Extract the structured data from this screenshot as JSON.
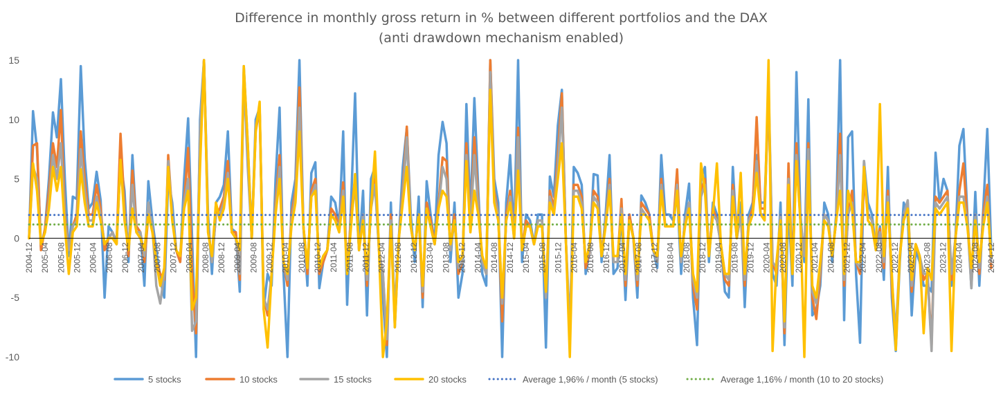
{
  "chart_data": {
    "type": "line",
    "title": "Difference in monthly gross return in % between different portfolios and the DAX",
    "subtitle": "(anti drawdown mechanism enabled)",
    "xlabel": "",
    "ylabel": "",
    "ylim": [
      -10,
      15
    ],
    "yticks": [
      15,
      10,
      5,
      0,
      -5,
      -10
    ],
    "grid": false,
    "legend": "bottom",
    "x_start": "2004-12",
    "x_end": "2024-12",
    "x_ticks": [
      "2004-12",
      "2005-04",
      "2005-08",
      "2005-12",
      "2006-04",
      "2006-08",
      "2006-12",
      "2007-04",
      "2007-08",
      "2007-12",
      "2008-04",
      "2008-08",
      "2008-12",
      "2009-04",
      "2009-08",
      "2009-12",
      "2010-04",
      "2010-08",
      "2010-12",
      "2011-04",
      "2011-08",
      "2011-12",
      "2012-04",
      "2012-08",
      "2012-12",
      "2013-04",
      "2013-08",
      "2013-12",
      "2014-04",
      "2014-08",
      "2014-12",
      "2015-04",
      "2015-08",
      "2015-12",
      "2016-04",
      "2016-08",
      "2016-12",
      "2017-04",
      "2017-08",
      "2017-12",
      "2018-04",
      "2018-08",
      "2018-12",
      "2019-04",
      "2019-08",
      "2019-12",
      "2020-04",
      "2020-08",
      "2020-12",
      "2021-04",
      "2021-08",
      "2021-12",
      "2022-04",
      "2022-08",
      "2022-12",
      "2023-04",
      "2023-08",
      "2023-12",
      "2024-04",
      "2024-08",
      "2024-12"
    ],
    "series": [
      {
        "name": "5 stocks",
        "color": "#5B9BD5",
        "style": "solid",
        "values": [
          0.0,
          10.7,
          7.5,
          -0.8,
          0.8,
          5.0,
          10.6,
          8.5,
          13.4,
          5.0,
          -1.5,
          3.5,
          3.3,
          14.5,
          6.7,
          2.5,
          3.0,
          5.6,
          3.2,
          -5.0,
          1.0,
          0.5,
          -0.3,
          6.5,
          4.0,
          -2.0,
          7.0,
          1.0,
          0.5,
          -4.0,
          4.8,
          1.5,
          -1.0,
          -3.5,
          -5.0,
          5.0,
          3.0,
          -1.0,
          -2.0,
          5.0,
          10.1,
          0.0,
          -10.0,
          10.0,
          15.0,
          2.0,
          -3.0,
          3.0,
          3.5,
          4.5,
          9.0,
          0.8,
          0.5,
          -4.5,
          14.5,
          8.0,
          0.0,
          10.0,
          11.0,
          -6.0,
          -3.0,
          -4.0,
          5.0,
          11.0,
          -3.0,
          -10.0,
          3.0,
          5.0,
          15.0,
          1.0,
          -4.0,
          5.5,
          6.4,
          -4.2,
          -2.0,
          -1.0,
          3.5,
          3.0,
          1.0,
          9.0,
          -5.6,
          3.0,
          12.2,
          -1.0,
          4.0,
          -6.5,
          5.0,
          6.0,
          -1.0,
          -5.0,
          -10.0,
          3.0,
          -7.5,
          0.0,
          6.0,
          9.3,
          2.0,
          -2.0,
          3.5,
          -5.8,
          4.8,
          2.0,
          -0.5,
          7.0,
          9.8,
          8.0,
          -2.0,
          3.0,
          -5.0,
          -3.0,
          11.3,
          2.0,
          11.8,
          4.0,
          -3.0,
          -4.0,
          15.0,
          5.0,
          3.0,
          -10.0,
          3.0,
          7.0,
          0.0,
          15.0,
          -2.0,
          2.0,
          1.5,
          -0.5,
          2.0,
          2.0,
          -9.2,
          5.2,
          3.5,
          9.5,
          12.5,
          0.0,
          -8.5,
          6.0,
          5.5,
          4.5,
          -3.0,
          -1.0,
          5.4,
          5.3,
          -2.0,
          2.0,
          7.0,
          -3.0,
          -2.5,
          2.0,
          -5.2,
          2.0,
          0.0,
          -5.0,
          3.6,
          3.0,
          2.0,
          -1.0,
          -2.5,
          7.0,
          2.0,
          2.0,
          1.5,
          4.0,
          -3.0,
          2.0,
          4.6,
          -5.0,
          -9.0,
          5.0,
          6.0,
          -2.0,
          3.0,
          2.0,
          -0.5,
          -4.5,
          -5.0,
          6.0,
          0.0,
          3.0,
          -5.8,
          2.0,
          3.0,
          7.0,
          3.0,
          3.0,
          12.3,
          -3.0,
          -4.0,
          3.0,
          -9.0,
          3.0,
          -4.0,
          14.0,
          2.0,
          -2.0,
          11.7,
          -6.5,
          -6.0,
          -4.0,
          3.0,
          2.0,
          -2.0,
          2.0,
          15.0,
          -6.9,
          8.5,
          9.0,
          -3.0,
          -8.8,
          6.5,
          3.0,
          2.0,
          -1.0,
          1.0,
          -3.5,
          6.0,
          -5.0,
          -9.5,
          -2.0,
          3.0,
          2.0,
          -6.5,
          -1.0,
          -2.0,
          -4.0,
          -4.0,
          -4.5,
          7.2,
          3.0,
          5.0,
          4.0,
          -4.0,
          0.0,
          7.8,
          9.2,
          2.0,
          -4.2,
          3.9,
          -4.0,
          2.5,
          9.2,
          -1.0
        ]
      },
      {
        "name": "10 stocks",
        "color": "#ED7D31",
        "style": "solid",
        "values": [
          0.0,
          7.8,
          8.0,
          -1.0,
          0.8,
          4.0,
          8.0,
          6.0,
          10.8,
          2.0,
          -1.0,
          1.0,
          2.0,
          9.0,
          5.0,
          2.0,
          2.0,
          4.5,
          2.5,
          -1.0,
          0.0,
          0.5,
          -0.5,
          8.8,
          2.5,
          -1.5,
          5.7,
          1.0,
          0.5,
          -2.0,
          2.0,
          1.0,
          -2.0,
          -3.0,
          -3.5,
          7.0,
          2.0,
          -1.0,
          -2.0,
          3.0,
          7.6,
          -3.0,
          -8.0,
          8.0,
          15.0,
          1.0,
          -2.0,
          2.0,
          2.5,
          3.5,
          6.5,
          0.5,
          0.5,
          -3.5,
          14.0,
          7.0,
          0.0,
          9.0,
          11.0,
          -5.0,
          -6.5,
          -3.0,
          3.0,
          7.0,
          -2.0,
          -4.0,
          2.0,
          4.0,
          12.7,
          1.0,
          -3.0,
          4.0,
          5.0,
          -3.0,
          -2.0,
          -1.0,
          2.5,
          2.0,
          1.0,
          4.7,
          -3.0,
          2.0,
          5.0,
          -1.0,
          2.0,
          -4.0,
          3.0,
          5.0,
          -1.0,
          -3.0,
          -9.0,
          2.0,
          -7.0,
          0.0,
          4.0,
          9.4,
          1.0,
          -1.0,
          2.0,
          -5.0,
          3.0,
          1.5,
          -0.5,
          3.0,
          6.8,
          6.5,
          -1.0,
          2.0,
          -3.0,
          -2.0,
          8.0,
          1.0,
          8.5,
          3.0,
          -2.0,
          -3.0,
          15.0,
          4.0,
          2.0,
          -7.0,
          2.0,
          4.0,
          0.0,
          9.3,
          -1.0,
          1.5,
          1.0,
          -0.5,
          1.5,
          1.5,
          -5.0,
          4.0,
          2.5,
          7.0,
          12.2,
          0.0,
          -9.0,
          4.5,
          4.5,
          3.5,
          -2.5,
          -1.0,
          4.0,
          3.5,
          -1.5,
          1.5,
          5.0,
          -2.0,
          -2.0,
          3.3,
          -4.0,
          2.0,
          0.0,
          -4.0,
          3.0,
          2.5,
          2.0,
          -1.0,
          -2.0,
          5.0,
          1.0,
          1.0,
          1.0,
          5.8,
          -2.0,
          1.5,
          3.0,
          -4.0,
          -6.0,
          4.0,
          5.0,
          -1.5,
          2.5,
          1.5,
          -0.5,
          -3.5,
          -4.0,
          4.5,
          0.0,
          2.0,
          -4.0,
          1.5,
          2.5,
          10.2,
          2.5,
          2.5,
          12.0,
          -2.0,
          -3.0,
          2.0,
          -8.0,
          6.3,
          -3.0,
          8.0,
          1.5,
          -1.5,
          8.0,
          -5.0,
          -6.8,
          -3.0,
          2.0,
          1.5,
          -1.5,
          1.5,
          8.8,
          -4.0,
          2.0,
          4.0,
          -2.0,
          -3.0,
          5.0,
          2.0,
          1.5,
          -1.0,
          0.8,
          -2.5,
          4.0,
          -4.0,
          -9.0,
          -1.5,
          2.0,
          3.0,
          -4.5,
          -0.5,
          -1.5,
          -3.5,
          -3.0,
          -9.0,
          3.5,
          3.0,
          3.5,
          4.0,
          -3.5,
          0.0,
          4.0,
          6.3,
          1.5,
          -3.0,
          2.0,
          -3.0,
          2.0,
          4.5,
          -2.5
        ]
      },
      {
        "name": "15 stocks",
        "color": "#A5A5A5",
        "style": "solid",
        "values": [
          0.0,
          6.0,
          5.0,
          -0.5,
          0.5,
          3.0,
          7.0,
          5.0,
          8.0,
          1.5,
          -1.0,
          1.0,
          1.5,
          7.5,
          4.0,
          1.5,
          1.5,
          3.5,
          2.0,
          -0.5,
          0.0,
          0.5,
          -0.5,
          6.5,
          2.0,
          -1.0,
          4.5,
          0.5,
          0.5,
          -1.5,
          3.0,
          1.0,
          -4.0,
          -5.5,
          -3.0,
          6.5,
          2.0,
          -1.0,
          -1.5,
          3.0,
          5.0,
          -7.8,
          -7.0,
          9.0,
          15.0,
          1.0,
          -2.0,
          2.0,
          2.0,
          3.0,
          5.5,
          0.5,
          0.0,
          -3.0,
          14.0,
          6.0,
          0.0,
          9.5,
          11.0,
          -5.0,
          -6.0,
          -3.0,
          2.5,
          6.0,
          -2.0,
          -3.5,
          1.5,
          3.5,
          11.0,
          1.0,
          -2.5,
          3.5,
          4.5,
          -2.5,
          -1.5,
          -1.0,
          2.0,
          1.5,
          1.0,
          4.0,
          -3.0,
          1.5,
          4.5,
          -1.0,
          2.0,
          -3.5,
          2.5,
          4.5,
          -1.0,
          -3.0,
          -8.5,
          1.5,
          -6.0,
          0.0,
          3.5,
          8.5,
          1.0,
          -1.0,
          2.0,
          -4.5,
          2.5,
          1.0,
          -0.5,
          2.5,
          6.0,
          5.0,
          -1.0,
          1.5,
          -2.5,
          -2.0,
          7.0,
          1.0,
          7.0,
          2.5,
          -2.0,
          -3.0,
          14.0,
          3.5,
          2.0,
          -5.5,
          1.5,
          3.5,
          0.0,
          8.5,
          -1.0,
          1.0,
          1.0,
          -0.5,
          1.5,
          1.5,
          -5.0,
          3.5,
          2.0,
          6.0,
          11.0,
          0.0,
          -7.5,
          4.0,
          4.0,
          3.0,
          -2.0,
          -1.0,
          3.5,
          3.0,
          -1.5,
          1.5,
          4.5,
          -2.0,
          -2.0,
          2.5,
          -3.5,
          1.5,
          0.0,
          -3.5,
          2.5,
          2.0,
          1.5,
          -1.0,
          -2.0,
          4.5,
          1.0,
          1.0,
          1.0,
          4.5,
          -2.0,
          1.5,
          3.0,
          -3.5,
          -5.0,
          3.5,
          4.5,
          -1.5,
          2.0,
          1.5,
          -0.5,
          -3.0,
          -3.5,
          4.0,
          0.0,
          2.0,
          -3.5,
          1.5,
          2.0,
          6.5,
          2.0,
          2.0,
          13.0,
          -2.0,
          -2.5,
          2.0,
          -7.5,
          5.0,
          -3.0,
          7.0,
          1.5,
          -1.5,
          7.5,
          -4.5,
          -5.5,
          -2.5,
          2.0,
          1.5,
          -1.5,
          1.5,
          7.0,
          -3.5,
          2.0,
          3.0,
          -2.0,
          -2.5,
          6.5,
          2.0,
          1.5,
          -1.0,
          0.5,
          -2.0,
          3.5,
          -3.5,
          -8.0,
          -1.5,
          2.0,
          3.2,
          -4.0,
          -0.5,
          -1.5,
          -3.0,
          -3.0,
          -9.5,
          3.0,
          2.5,
          3.0,
          3.5,
          -3.0,
          0.0,
          3.5,
          3.5,
          1.5,
          -4.2,
          2.0,
          -2.5,
          1.5,
          3.5,
          -2.0
        ]
      },
      {
        "name": "20 stocks",
        "color": "#FFC000",
        "style": "solid",
        "values": [
          0.0,
          6.3,
          4.0,
          -0.5,
          0.5,
          2.5,
          6.0,
          4.0,
          6.0,
          1.0,
          -3.0,
          0.5,
          1.0,
          5.8,
          3.0,
          1.0,
          1.0,
          3.0,
          1.5,
          -0.5,
          0.0,
          0.0,
          -0.5,
          6.6,
          1.5,
          -1.0,
          2.5,
          0.5,
          0.0,
          -1.0,
          2.0,
          0.5,
          -2.0,
          -4.0,
          -2.5,
          6.0,
          1.5,
          -1.0,
          -1.5,
          2.5,
          4.0,
          -6.0,
          -5.0,
          6.0,
          15.0,
          0.5,
          -1.5,
          3.0,
          1.5,
          2.5,
          5.0,
          0.5,
          0.0,
          -1.0,
          14.5,
          8.0,
          0.0,
          9.0,
          11.5,
          -6.0,
          -9.2,
          -3.0,
          2.0,
          5.0,
          -2.0,
          -3.0,
          1.0,
          3.0,
          9.0,
          1.0,
          -2.5,
          3.5,
          4.0,
          -2.5,
          -1.5,
          -1.0,
          2.0,
          1.5,
          0.5,
          3.5,
          -3.0,
          1.0,
          5.4,
          -1.0,
          1.5,
          -3.0,
          2.5,
          7.3,
          -1.0,
          -10.0,
          -7.0,
          1.0,
          -7.5,
          0.0,
          3.0,
          6.0,
          1.0,
          -1.0,
          2.0,
          -4.0,
          2.5,
          1.0,
          -0.5,
          2.5,
          4.0,
          3.5,
          -0.5,
          1.5,
          -2.0,
          -1.5,
          6.5,
          0.5,
          4.0,
          2.0,
          -1.5,
          -2.5,
          12.5,
          3.0,
          1.5,
          -5.0,
          1.5,
          3.0,
          0.0,
          5.7,
          -1.0,
          1.0,
          1.0,
          -0.5,
          1.0,
          1.0,
          -4.5,
          3.0,
          2.0,
          5.0,
          8.0,
          0.0,
          -10.0,
          3.5,
          3.5,
          2.5,
          -2.0,
          -0.5,
          3.0,
          2.5,
          -1.5,
          1.0,
          4.0,
          -1.5,
          -1.5,
          2.0,
          -3.0,
          1.5,
          0.0,
          -3.0,
          2.0,
          2.0,
          1.5,
          -1.0,
          -1.5,
          4.0,
          1.0,
          1.0,
          1.0,
          4.0,
          -1.5,
          1.0,
          2.5,
          -3.0,
          -4.5,
          6.3,
          4.0,
          -1.5,
          2.0,
          6.3,
          -0.5,
          -3.0,
          -3.0,
          3.5,
          0.0,
          5.5,
          -3.0,
          1.0,
          2.0,
          5.5,
          2.0,
          1.5,
          15.0,
          -9.5,
          -2.0,
          1.5,
          -7.0,
          4.5,
          -3.0,
          6.5,
          1.5,
          -10.0,
          6.5,
          -4.0,
          -5.0,
          -2.0,
          1.5,
          1.0,
          -1.5,
          1.5,
          4.0,
          -3.0,
          4.0,
          2.5,
          -2.0,
          -2.0,
          6.0,
          1.5,
          1.0,
          -1.0,
          11.3,
          -1.5,
          3.0,
          -3.0,
          -9.4,
          -1.5,
          1.5,
          2.5,
          -3.5,
          -0.5,
          -1.5,
          -8.0,
          -2.5,
          -3.5,
          2.5,
          2.0,
          2.5,
          3.0,
          -9.5,
          0.0,
          3.0,
          3.0,
          1.0,
          -2.5,
          1.5,
          -2.0,
          1.0,
          3.0,
          -1.5
        ]
      }
    ],
    "averages": [
      {
        "name": "Average 1,96% / month (5 stocks)",
        "value": 1.96,
        "color": "#4472C4",
        "style": "dotted"
      },
      {
        "name": "Average 1,16% / month (10 to 20 stocks)",
        "value": 1.16,
        "color": "#70AD47",
        "style": "dotted"
      }
    ]
  }
}
